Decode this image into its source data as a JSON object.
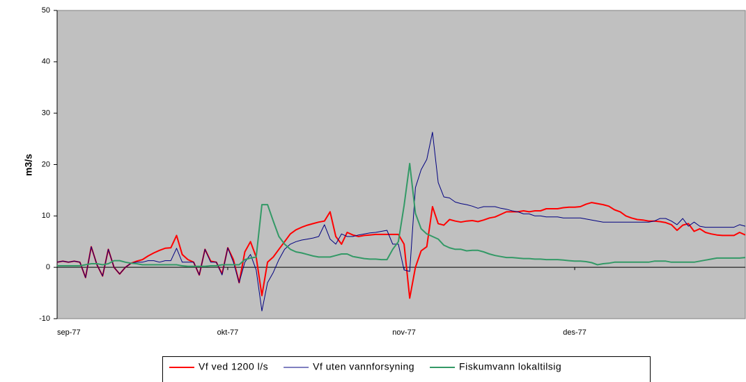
{
  "chart_data": {
    "type": "line",
    "ylabel": "m3/s",
    "categories": [
      "sep-77",
      null,
      null,
      null,
      null,
      null,
      null,
      null,
      null,
      null,
      null,
      null,
      null,
      null,
      null,
      null,
      null,
      null,
      null,
      null,
      null,
      null,
      null,
      null,
      null,
      null,
      null,
      null,
      null,
      null,
      "okt-77",
      null,
      null,
      null,
      null,
      null,
      null,
      null,
      null,
      null,
      null,
      null,
      null,
      null,
      null,
      null,
      null,
      null,
      null,
      null,
      null,
      null,
      null,
      null,
      null,
      null,
      null,
      null,
      null,
      null,
      null,
      "nov-77",
      null,
      null,
      null,
      null,
      null,
      null,
      null,
      null,
      null,
      null,
      null,
      null,
      null,
      null,
      null,
      null,
      null,
      null,
      null,
      null,
      null,
      null,
      null,
      null,
      null,
      null,
      null,
      null,
      null,
      "des-77",
      null,
      null,
      null,
      null,
      null,
      null,
      null,
      null,
      null,
      null,
      null,
      null,
      null,
      null,
      null,
      null,
      null,
      null,
      null,
      null,
      null,
      null,
      null,
      null,
      null,
      null,
      null,
      null,
      null,
      null
    ],
    "series": [
      {
        "name": "Vf ved 1200 l/s",
        "color": "#ff0000",
        "width": 2,
        "values": [
          1,
          1.2,
          1,
          1.2,
          1,
          -2,
          4,
          0.5,
          -1.7,
          3.5,
          0,
          -1.3,
          0,
          0.8,
          1.2,
          1.5,
          2.2,
          2.8,
          3.3,
          3.7,
          3.8,
          6.2,
          2.5,
          1.5,
          1,
          -1.5,
          3.5,
          1.2,
          1,
          -1.3,
          3.8,
          1.5,
          -3,
          3,
          5,
          2,
          -5.5,
          1,
          2,
          3.5,
          5,
          6.5,
          7.3,
          7.8,
          8.2,
          8.5,
          8.8,
          9,
          10.8,
          6,
          4.5,
          6.8,
          6.3,
          6,
          6.2,
          6.3,
          6.4,
          6.4,
          6.4,
          6.4,
          6.4,
          4.5,
          -6,
          0,
          3.2,
          4,
          11.8,
          8.5,
          8.2,
          9.3,
          9,
          8.8,
          9,
          9.1,
          8.9,
          9.2,
          9.6,
          9.8,
          10.3,
          10.8,
          10.8,
          10.8,
          11,
          10.8,
          11,
          11,
          11.4,
          11.4,
          11.4,
          11.6,
          11.7,
          11.7,
          11.8,
          12.3,
          12.6,
          12.4,
          12.2,
          11.9,
          11.2,
          10.8,
          10,
          9.6,
          9.3,
          9.2,
          9,
          9,
          8.9,
          8.7,
          8.3,
          7.2,
          8.2,
          8.5,
          7,
          7.5,
          6.8,
          6.5,
          6.3,
          6.2,
          6.2,
          6.2,
          6.8,
          6.3
        ]
      },
      {
        "name": "Vf uten vannforsyning",
        "color": "#000080",
        "width": 1,
        "values": [
          1,
          1.2,
          1,
          1.2,
          1,
          -2,
          4,
          0.5,
          -1.7,
          3.5,
          0,
          -1.3,
          0,
          0.8,
          1,
          1,
          1.3,
          1.3,
          1,
          1.3,
          1.3,
          3.7,
          1,
          1,
          1,
          -1.5,
          3.5,
          1,
          1,
          -1.5,
          3.8,
          1,
          -3,
          1,
          2.5,
          -0.5,
          -8.5,
          -3,
          -1,
          1.5,
          3.5,
          4.5,
          5,
          5.3,
          5.5,
          5.7,
          6,
          8.3,
          5.5,
          4.5,
          6.5,
          6,
          6,
          6.3,
          6.5,
          6.7,
          6.8,
          7,
          7.2,
          4.5,
          4.5,
          -0.5,
          -0.8,
          15.5,
          19,
          21,
          26.3,
          16.5,
          13.7,
          13.5,
          12.7,
          12.4,
          12.2,
          11.9,
          11.5,
          11.8,
          11.8,
          11.8,
          11.5,
          11.3,
          11,
          10.8,
          10.4,
          10.4,
          10,
          10,
          9.8,
          9.8,
          9.8,
          9.6,
          9.6,
          9.6,
          9.6,
          9.4,
          9.2,
          9,
          8.8,
          8.8,
          8.8,
          8.8,
          8.8,
          8.8,
          8.8,
          8.8,
          8.8,
          9,
          9.5,
          9.5,
          9,
          8.3,
          9.5,
          8,
          8.8,
          8,
          7.8,
          7.8,
          7.8,
          7.8,
          7.8,
          7.8,
          8.3,
          8
        ]
      },
      {
        "name": "Fiskumvann lokaltilsig",
        "color": "#339966",
        "width": 2,
        "values": [
          0.3,
          0.3,
          0.3,
          0.3,
          0.3,
          0.5,
          0.7,
          0.7,
          0.5,
          0.7,
          1.3,
          1.3,
          1,
          0.8,
          0.7,
          0.5,
          0.5,
          0.5,
          0.5,
          0.5,
          0.5,
          0.5,
          0.3,
          0.2,
          0.2,
          0.2,
          0.2,
          0.3,
          0.3,
          0.5,
          0.5,
          0.5,
          0.5,
          1.5,
          1.8,
          2,
          12.2,
          12.2,
          9,
          6,
          4.5,
          3.5,
          3,
          2.8,
          2.5,
          2.2,
          2,
          2,
          2,
          2.3,
          2.6,
          2.6,
          2.1,
          1.9,
          1.7,
          1.6,
          1.6,
          1.5,
          1.5,
          3.5,
          5,
          12,
          20.2,
          10.5,
          7.5,
          6.5,
          6,
          5.5,
          4.3,
          3.8,
          3.5,
          3.5,
          3.2,
          3.3,
          3.3,
          3,
          2.6,
          2.3,
          2.1,
          1.9,
          1.9,
          1.8,
          1.7,
          1.7,
          1.6,
          1.6,
          1.5,
          1.5,
          1.5,
          1.4,
          1.3,
          1.2,
          1.2,
          1.1,
          0.9,
          0.5,
          0.7,
          0.8,
          1,
          1,
          1,
          1,
          1,
          1,
          1,
          1.2,
          1.2,
          1.2,
          1,
          1,
          1,
          1,
          1,
          1.2,
          1.4,
          1.6,
          1.8,
          1.8,
          1.8,
          1.8,
          1.8,
          1.9
        ]
      }
    ],
    "ylim": [
      -10,
      50
    ],
    "yticks": [
      -10,
      0,
      10,
      20,
      30,
      40,
      50
    ],
    "plot_background": "#c0c0c0",
    "grid": false,
    "legend": "bottom"
  }
}
